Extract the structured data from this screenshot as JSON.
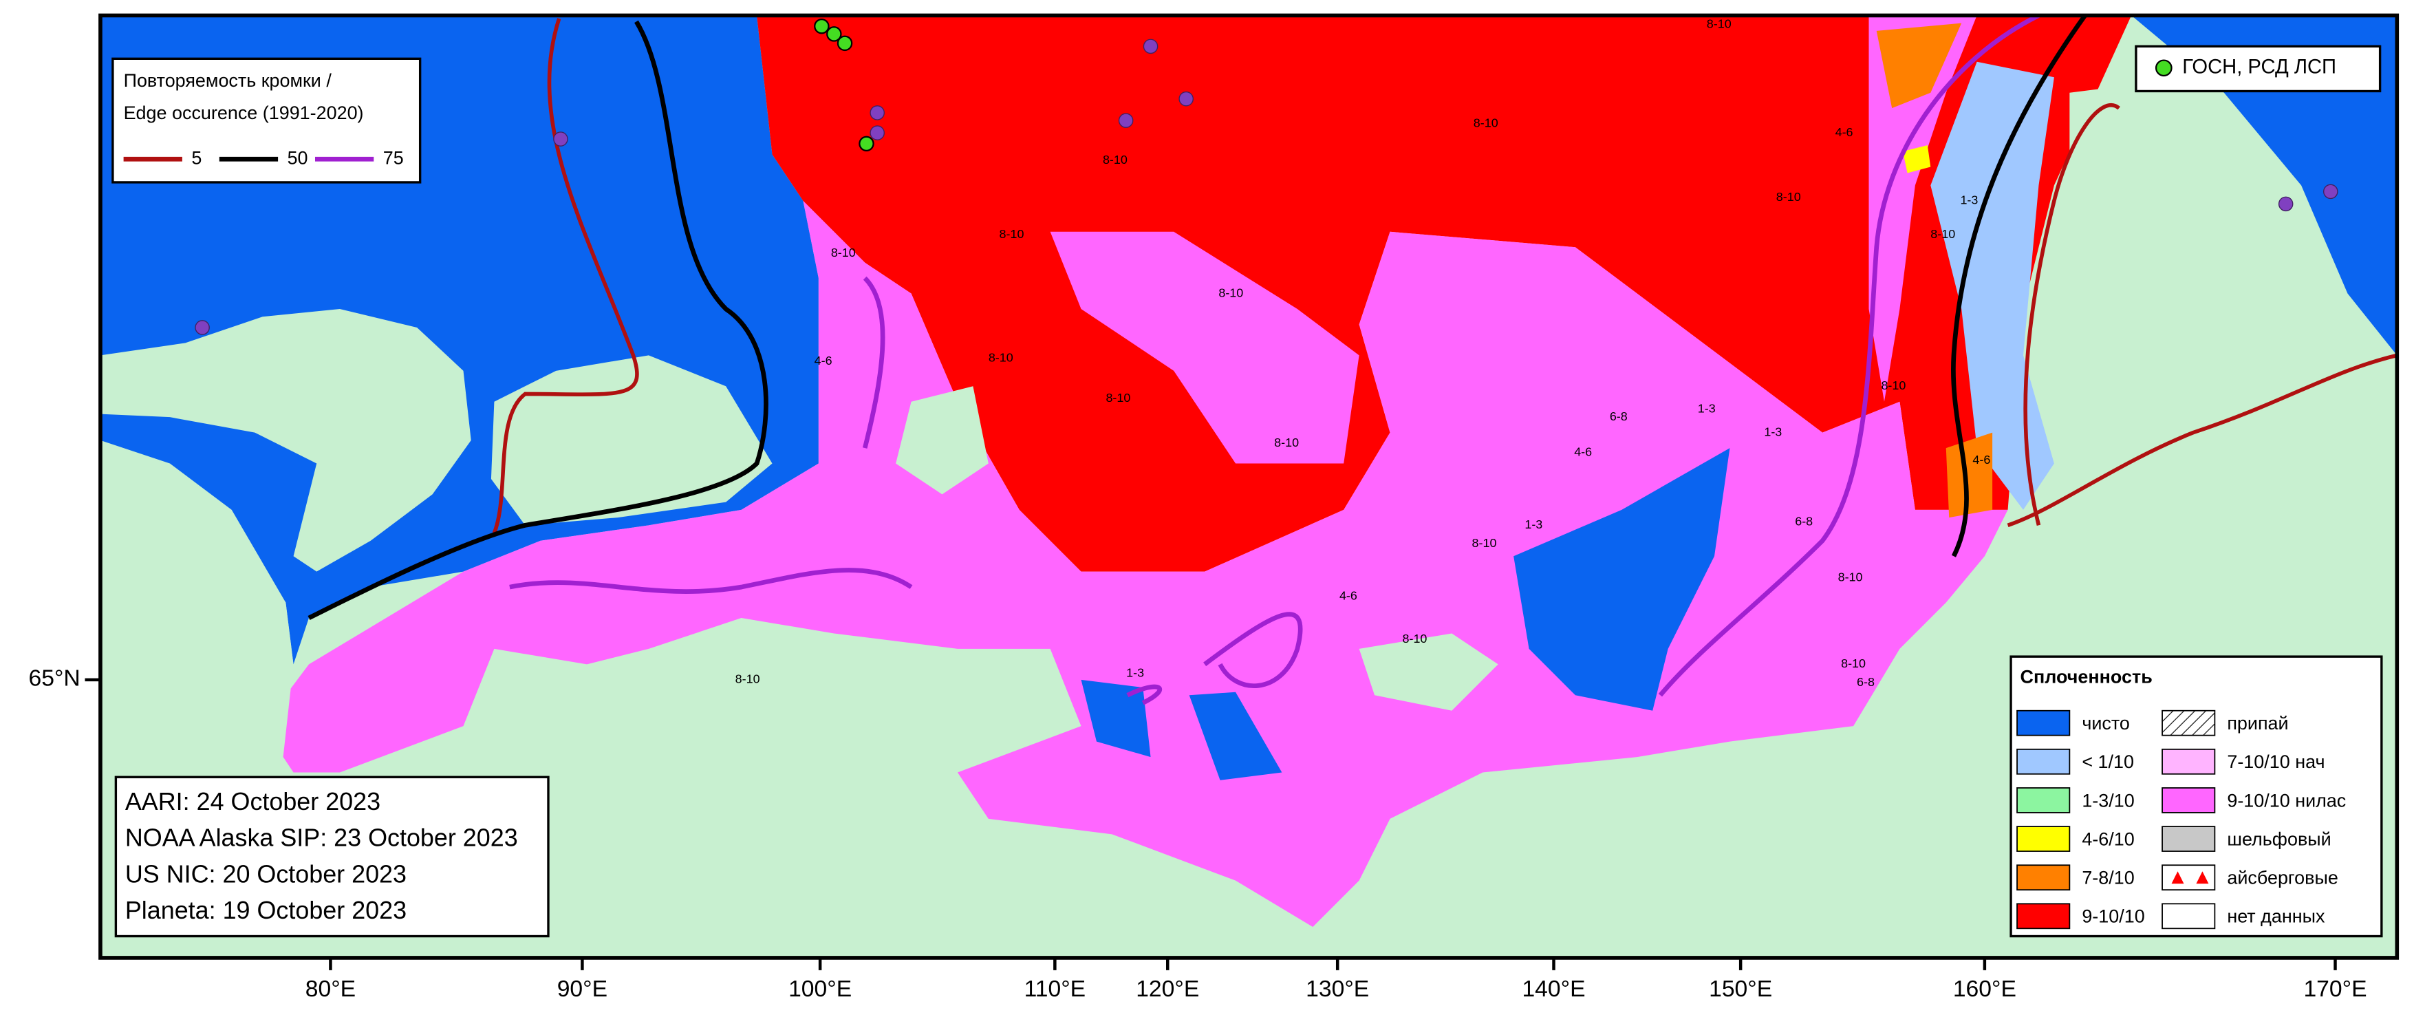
{
  "map": {
    "lat_label": "65°N",
    "lon_labels": [
      "80°E",
      "90°E",
      "100°E",
      "110°E",
      "120°E",
      "130°E",
      "140°E",
      "150°E",
      "160°E",
      "170°E"
    ]
  },
  "edge_legend": {
    "title_lines": [
      "Повторяемость кромки /",
      "Edge occurence (1991-2020)"
    ],
    "items": [
      {
        "label": "5",
        "color": "#b01010"
      },
      {
        "label": "50",
        "color": "#000000"
      },
      {
        "label": "75",
        "color": "#a020d0"
      }
    ]
  },
  "station_legend": {
    "label": "ГОСН, РСД ЛСП",
    "color": "#44dd22"
  },
  "sources": [
    "AARI: 24 October 2023",
    "NOAA Alaska SIP: 23 October 2023",
    "US NIC: 20 October 2023",
    "Planeta: 19 October 2023"
  ],
  "concentration_legend": {
    "title": "Сплоченность",
    "items": [
      {
        "label": "чисто",
        "color": "#0a64f0"
      },
      {
        "label": "< 1/10",
        "color": "#a0c8ff"
      },
      {
        "label": "1-3/10",
        "color": "#8cf5a0"
      },
      {
        "label": "4-6/10",
        "color": "#ffff00"
      },
      {
        "label": "7-8/10",
        "color": "#ff8000"
      },
      {
        "label": "9-10/10",
        "color": "#ff0000"
      },
      {
        "label": "припай",
        "pattern": "hatch"
      },
      {
        "label": "7-10/10 нач",
        "color": "#ffb4ff"
      },
      {
        "label": "9-10/10 нилас",
        "color": "#ff66ff"
      },
      {
        "label": "шельфовый",
        "color": "#c8c8c8"
      },
      {
        "label": "айсберговые",
        "pattern": "triangles"
      },
      {
        "label": "нет данных",
        "color": "#ffffff"
      }
    ]
  },
  "map_labels": [
    "8-10",
    "8-10",
    "8-10",
    "8-10",
    "8-10",
    "8-10",
    "8-10",
    "8-10",
    "8-10",
    "8-10",
    "8-10",
    "4-6",
    "4-6",
    "1-3",
    "1-3",
    "6-8",
    "6-8",
    "8-10",
    "4-6",
    "1-3",
    "8-10",
    "8-10",
    "4-6",
    "1-3",
    "8-10",
    "6-8",
    "8-10",
    "4-6",
    "8-10",
    "1-3"
  ]
}
